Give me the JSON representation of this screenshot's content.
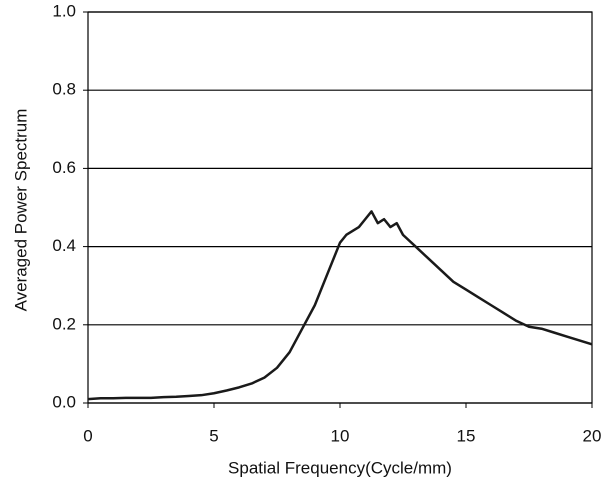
{
  "chart_data": {
    "type": "line",
    "x_label": "Spatial Frequency(Cycle/mm)",
    "y_label": "Averaged Power Spectrum",
    "x": [
      0,
      0.5,
      1,
      1.5,
      2,
      2.5,
      3,
      3.5,
      4,
      4.5,
      5,
      5.5,
      6,
      6.5,
      7,
      7.5,
      8,
      8.5,
      9,
      9.5,
      10,
      10.25,
      10.5,
      10.75,
      11,
      11.25,
      11.5,
      11.75,
      12,
      12.25,
      12.5,
      13,
      13.5,
      14,
      14.5,
      15,
      15.5,
      16,
      16.5,
      17,
      17.5,
      18,
      18.5,
      19,
      19.5,
      20
    ],
    "series": [
      {
        "color": "#1a1a1a",
        "values": [
          0.01,
          0.012,
          0.012,
          0.013,
          0.013,
          0.013,
          0.015,
          0.016,
          0.018,
          0.02,
          0.025,
          0.032,
          0.04,
          0.05,
          0.065,
          0.09,
          0.13,
          0.19,
          0.25,
          0.33,
          0.41,
          0.43,
          0.44,
          0.45,
          0.47,
          0.49,
          0.46,
          0.47,
          0.45,
          0.46,
          0.43,
          0.4,
          0.37,
          0.34,
          0.31,
          0.29,
          0.27,
          0.25,
          0.23,
          0.21,
          0.195,
          0.19,
          0.18,
          0.17,
          0.16,
          0.15
        ]
      }
    ],
    "xlim": [
      0,
      20
    ],
    "xticks": [
      0,
      5,
      10,
      15,
      20
    ],
    "ylim": [
      0,
      1
    ],
    "yticks": [
      {
        "value": 0,
        "label": "0.0"
      },
      0.2,
      0.4,
      0.6,
      0.8,
      {
        "value": 1,
        "label": "1.0"
      }
    ],
    "grid": true
  }
}
